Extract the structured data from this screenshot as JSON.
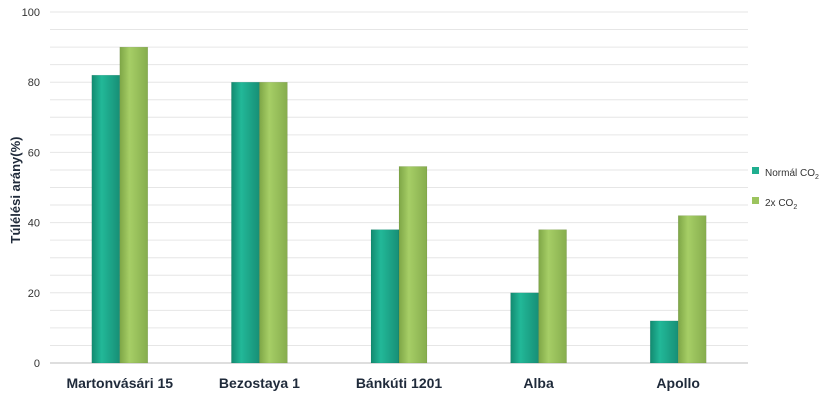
{
  "chart_data": {
    "type": "bar",
    "title": "",
    "xlabel": "",
    "ylabel": "Túlélési arány(%)",
    "ylim": [
      0,
      100
    ],
    "yticks": [
      0,
      20,
      40,
      60,
      80,
      100
    ],
    "grid": true,
    "legend_position": "right",
    "categories": [
      "Martonvásári 15",
      "Bezostaya 1",
      "Bánkúti 1201",
      "Alba",
      "Apollo"
    ],
    "series": [
      {
        "name": "Normál CO2",
        "legend_main": "Normál CO",
        "legend_sub": "2",
        "color": "#1fae8f",
        "values": [
          82,
          80,
          38,
          20,
          12
        ]
      },
      {
        "name": "2x CO2",
        "legend_main": "2x CO",
        "legend_sub": "2",
        "color": "#9cc45e",
        "values": [
          90,
          80,
          56,
          38,
          42
        ]
      }
    ]
  }
}
